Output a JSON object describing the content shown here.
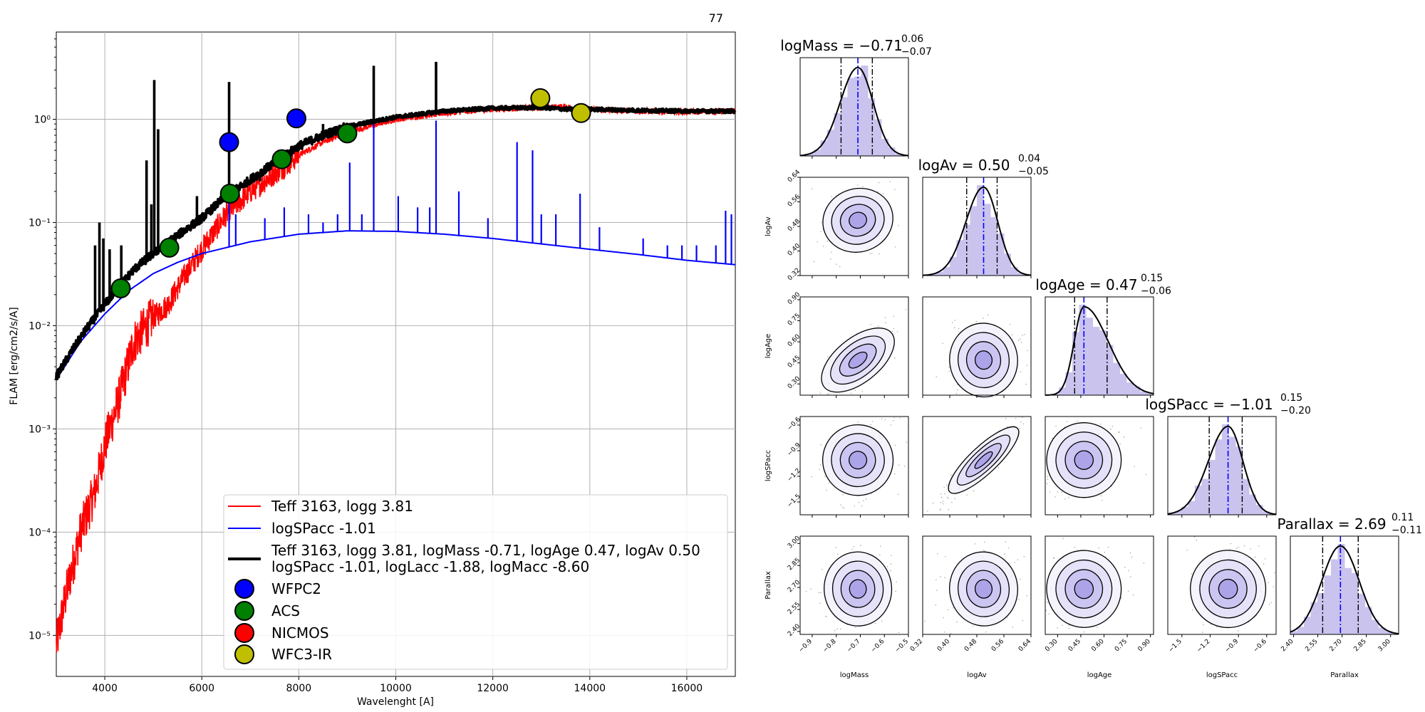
{
  "figure_number": "77",
  "sed": {
    "xlabel": "Wavelenght [A]",
    "ylabel": "FLAM [erg/cm2/s/A]",
    "x_ticks": [
      "4000",
      "6000",
      "8000",
      "10000",
      "12000",
      "14000",
      "16000"
    ],
    "y_ticks": [
      "10⁻⁵",
      "10⁻⁴",
      "10⁻³",
      "10⁻²",
      "10⁻¹",
      "10⁰"
    ],
    "legend": {
      "line_red": "Teff 3163, logg 3.81",
      "line_blue": "logSPacc -1.01",
      "line_black_1": "Teff 3163, logg 3.81, logMass -0.71, logAge 0.47, logAv 0.50",
      "line_black_2": "logSPacc -1.01, logLacc -1.88, logMacc -8.60",
      "wfpc2": "WFPC2",
      "acs": "ACS",
      "nicmos": "NICMOS",
      "wfc3": "WFC3-IR"
    }
  },
  "corner": {
    "logMass": {
      "title": "logMass = −0.71",
      "sup": "0.06",
      "sub": "−0.07",
      "label": "logMass",
      "ticks": [
        "−0.9",
        "−0.8",
        "−0.7",
        "−0.6",
        "−0.5"
      ]
    },
    "logAv": {
      "title": "logAv = 0.50",
      "sup": "0.04",
      "sub": "−0.05",
      "label": "logAv",
      "ticks": [
        "0.32",
        "0.40",
        "0.48",
        "0.56",
        "0.64"
      ]
    },
    "logAge": {
      "title": "logAge = 0.47",
      "sup": "0.15",
      "sub": "−0.06",
      "label": "logAge",
      "ticks": [
        "0.30",
        "0.45",
        "0.60",
        "0.75",
        "0.90"
      ]
    },
    "logSPacc": {
      "title": "logSPacc = −1.01",
      "sup": "0.15",
      "sub": "−0.20",
      "label": "logSPacc",
      "ticks": [
        "−1.5",
        "−1.2",
        "−0.9",
        "−0.6"
      ]
    },
    "Parallax": {
      "title": "Parallax = 2.69",
      "sup": "0.11",
      "sub": "−0.11",
      "label": "Parallax",
      "ticks": [
        "2.40",
        "2.55",
        "2.70",
        "2.85",
        "3.00"
      ]
    }
  },
  "chart_data": [
    {
      "type": "line",
      "xlabel": "Wavelenght [A]",
      "ylabel": "FLAM [erg/cm2/s/A]",
      "xlim": [
        3000,
        17000
      ],
      "ylim": [
        4e-06,
        7
      ],
      "yscale": "log",
      "grid": true,
      "legend_position": "bottom-right",
      "series": [
        {
          "name": "Teff 3163, logg 3.81",
          "color": "#ff0000",
          "x": [
            3000,
            3200,
            3500,
            3800,
            4000,
            4300,
            4600,
            5000,
            5300,
            5600,
            6000,
            6500,
            7000,
            7500,
            8000,
            8500,
            9000,
            10000,
            11000,
            12000,
            13000,
            13500,
            14000,
            15000,
            16000,
            17000
          ],
          "y": [
            8e-06,
            2.5e-05,
            0.0001,
            0.00025,
            0.0007,
            0.002,
            0.007,
            0.012,
            0.016,
            0.028,
            0.055,
            0.12,
            0.2,
            0.3,
            0.45,
            0.6,
            0.75,
            1.0,
            1.15,
            1.25,
            1.3,
            1.32,
            1.25,
            1.2,
            1.18,
            1.2
          ]
        },
        {
          "name": "logSPacc -1.01",
          "color": "#0000ff",
          "x": [
            3000,
            3500,
            4000,
            4500,
            5000,
            5500,
            6000,
            7000,
            8000,
            9000,
            10000,
            11000,
            12000,
            13000,
            14000,
            15000,
            16000,
            17000
          ],
          "y": [
            0.003,
            0.007,
            0.013,
            0.022,
            0.032,
            0.041,
            0.05,
            0.065,
            0.077,
            0.083,
            0.082,
            0.077,
            0.07,
            0.062,
            0.055,
            0.049,
            0.043,
            0.039
          ]
        },
        {
          "name": "Teff 3163, logg 3.81, logMass -0.71, logAge 0.47, logAv 0.50 logSPacc -1.01, logLacc -1.88, logMacc -8.60",
          "color": "#000000",
          "x": [
            3000,
            3300,
            3600,
            4000,
            4300,
            4600,
            5000,
            5500,
            6000,
            6500,
            7000,
            7500,
            8000,
            8500,
            9000,
            10000,
            11000,
            12000,
            13000,
            13500,
            14000,
            15000,
            16000,
            17000
          ],
          "y": [
            0.0032,
            0.0055,
            0.009,
            0.016,
            0.024,
            0.035,
            0.05,
            0.075,
            0.11,
            0.18,
            0.26,
            0.38,
            0.55,
            0.7,
            0.85,
            1.05,
            1.2,
            1.28,
            1.3,
            1.25,
            1.25,
            1.22,
            1.2,
            1.2
          ]
        }
      ],
      "photometry": [
        {
          "instrument": "WFPC2",
          "color": "#0000ff",
          "points": [
            [
              6563,
              0.6
            ],
            [
              7950,
              1.02
            ]
          ]
        },
        {
          "instrument": "ACS",
          "color": "#008000",
          "points": [
            [
              4330,
              0.023
            ],
            [
              5330,
              0.057
            ],
            [
              6580,
              0.19
            ],
            [
              7650,
              0.41
            ],
            [
              9000,
              0.73
            ]
          ]
        },
        {
          "instrument": "NICMOS",
          "color": "#ff0000",
          "points": []
        },
        {
          "instrument": "WFC3-IR",
          "color": "#bfbf00",
          "points": [
            [
              12980,
              1.6
            ],
            [
              13820,
              1.15
            ]
          ]
        }
      ]
    },
    {
      "type": "corner",
      "parameters": [
        "logMass",
        "logAv",
        "logAge",
        "logSPacc",
        "Parallax"
      ],
      "medians": [
        -0.71,
        0.5,
        0.47,
        -1.01,
        2.69
      ],
      "upper_errors": [
        0.06,
        0.04,
        0.15,
        0.15,
        0.11
      ],
      "lower_errors": [
        -0.07,
        -0.05,
        -0.06,
        -0.2,
        -0.11
      ],
      "ranges": [
        [
          -0.95,
          -0.5
        ],
        [
          0.32,
          0.64
        ],
        [
          0.22,
          0.92
        ],
        [
          -1.65,
          -0.5
        ],
        [
          2.38,
          3.05
        ]
      ]
    }
  ]
}
